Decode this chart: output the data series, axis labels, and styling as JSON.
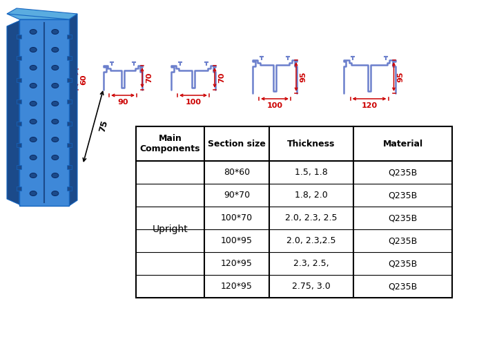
{
  "profile_color": "#6B7FCC",
  "dim_color": "#CC0000",
  "upright_front_color": "#3A7FD5",
  "upright_side_color": "#1A4FA0",
  "upright_dark_color": "#0D2B6E",
  "upright_top_color": "#5599E0",
  "bg_color": "#FFFFFF",
  "table_sections": [
    "80*60",
    "90*70",
    "100*70",
    "100*95",
    "120*95",
    "120*95"
  ],
  "table_thickness": [
    "1.5, 1.8",
    "1.8, 2.0",
    "2.0, 2.3, 2.5",
    "2.0, 2.3,2.5",
    "2.3, 2.5,",
    "2.75, 3.0"
  ],
  "table_material": [
    "Q235B",
    "Q235B",
    "Q235B",
    "Q235B",
    "Q235B",
    "Q235B"
  ],
  "headers": [
    "Main\nComponents",
    "Section size",
    "Thickness",
    "Material"
  ],
  "upright_label": "75"
}
